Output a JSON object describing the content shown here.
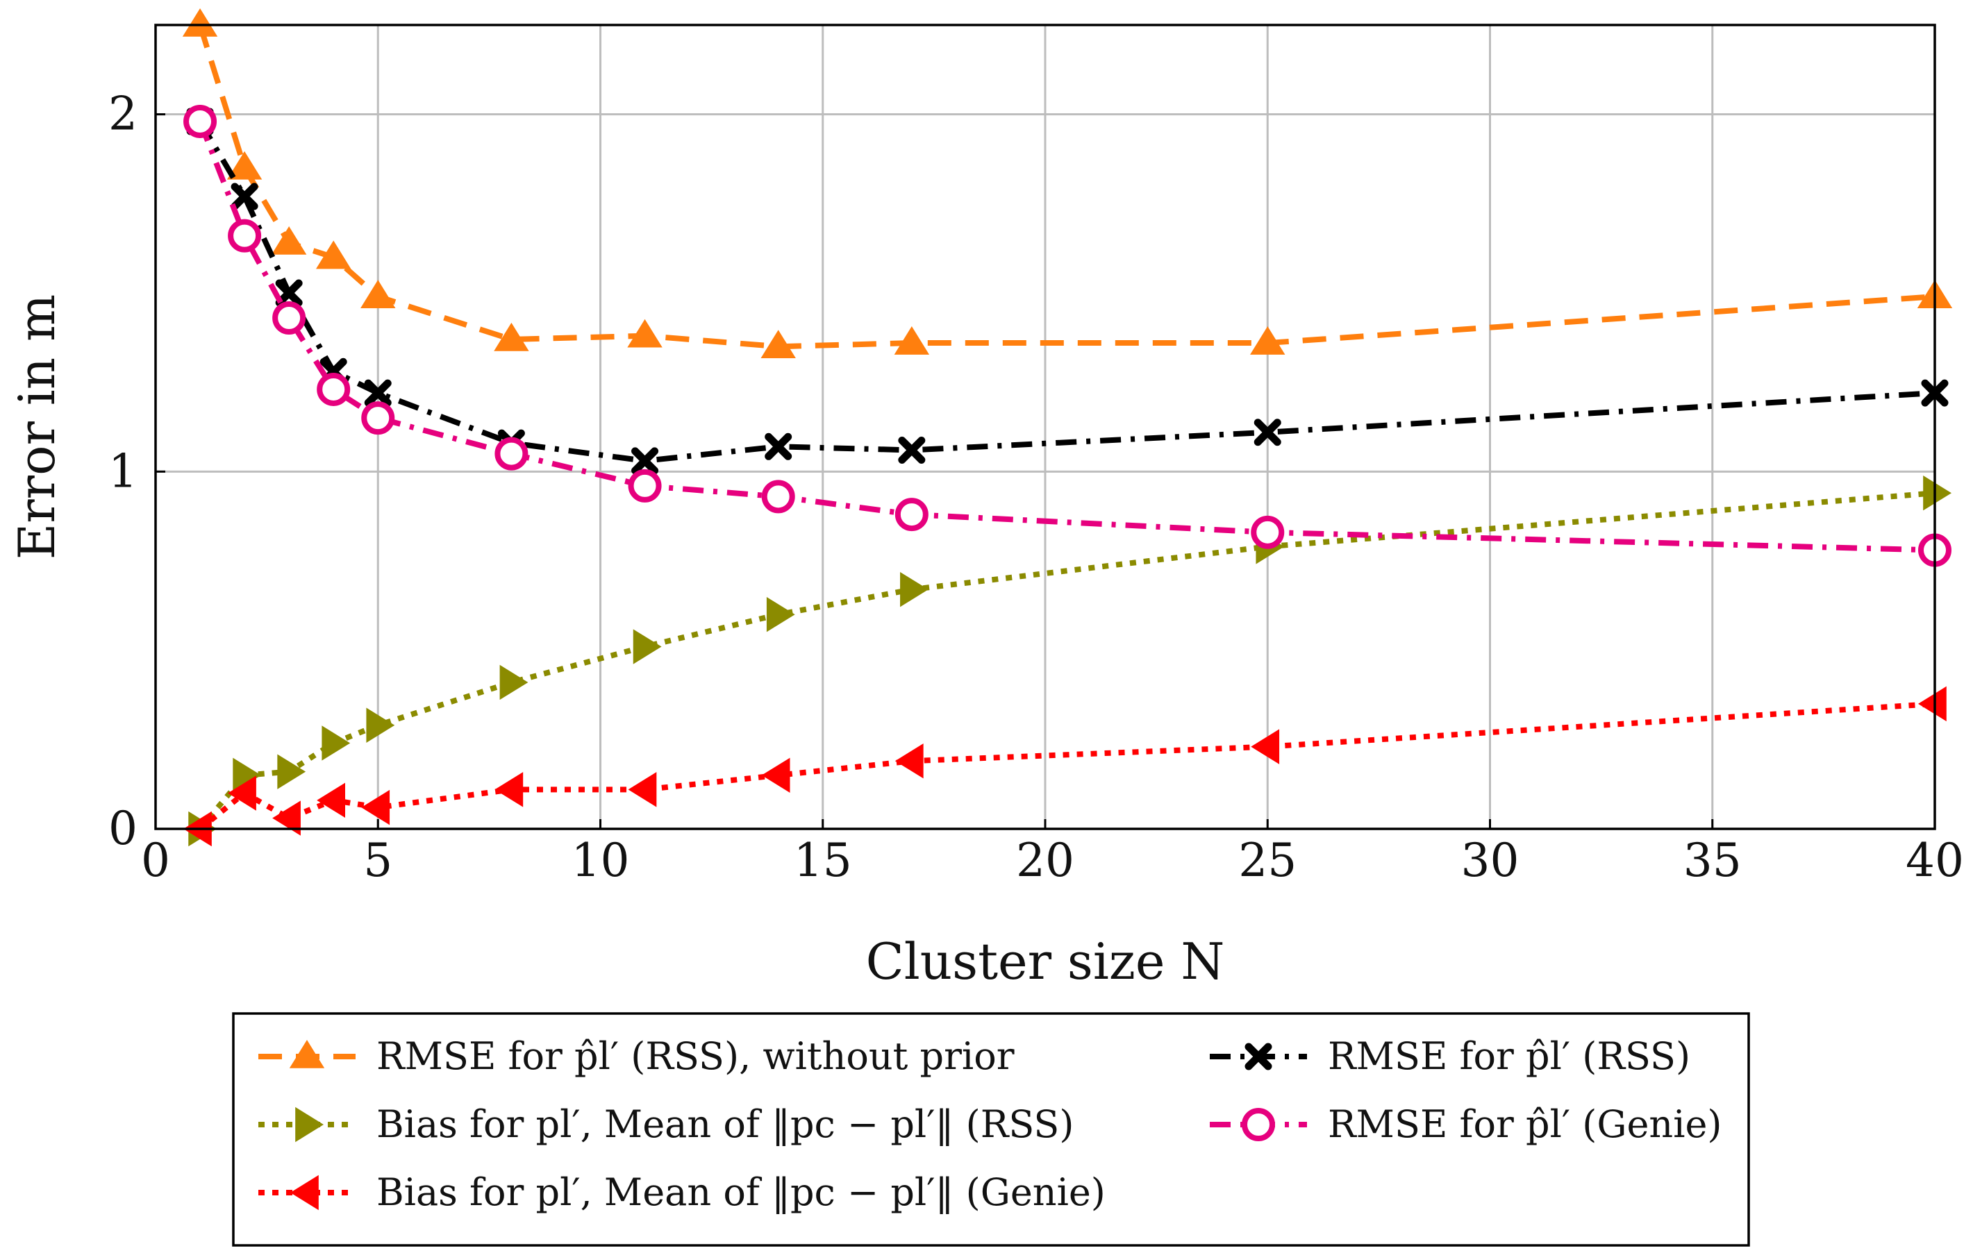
{
  "chart_data": {
    "type": "line",
    "title": "",
    "xlabel": "Cluster size N",
    "ylabel": "Error in m",
    "xlim": [
      0,
      40
    ],
    "ylim": [
      0,
      2.25
    ],
    "xticks": [
      0,
      5,
      10,
      15,
      20,
      25,
      30,
      35,
      40
    ],
    "yticks": [
      0,
      1,
      2
    ],
    "xtick_labels": [
      "0",
      "5",
      "10",
      "15",
      "20",
      "25",
      "30",
      "35",
      "40"
    ],
    "ytick_labels": [
      "0",
      "1",
      "2"
    ],
    "grid": true,
    "legend_position": "bottom-outside",
    "series": [
      {
        "name": "RMSE for p̂_l′ (RSS), without prior",
        "legend_text": "RMSE for p̂l′ (RSS), without prior",
        "color": "#ff7f0e",
        "dash": "dashed",
        "marker": "triangle-up",
        "x": [
          1,
          2,
          3,
          4,
          5,
          8,
          11,
          14,
          17,
          25,
          40
        ],
        "values": [
          2.25,
          1.85,
          1.64,
          1.6,
          1.49,
          1.37,
          1.38,
          1.35,
          1.36,
          1.36,
          1.49
        ]
      },
      {
        "name": "RMSE for p̂_l′ (RSS)",
        "legend_text": "RMSE for p̂l′ (RSS)",
        "color": "#000000",
        "dash": "dashdot",
        "marker": "x",
        "x": [
          1,
          2,
          3,
          4,
          5,
          8,
          11,
          14,
          17,
          25,
          40
        ],
        "values": [
          1.98,
          1.77,
          1.5,
          1.28,
          1.22,
          1.08,
          1.03,
          1.07,
          1.06,
          1.11,
          1.22
        ]
      },
      {
        "name": "Bias for p_l′, Mean of ‖p_c − p_l′‖ (RSS)",
        "legend_text": "Bias for pl′, Mean of ‖pc − pl′‖ (RSS)",
        "color": "#8b8b00",
        "dash": "dotted",
        "marker": "triangle-right",
        "x": [
          1,
          2,
          3,
          4,
          5,
          8,
          11,
          14,
          17,
          25,
          40
        ],
        "values": [
          0.0,
          0.15,
          0.16,
          0.24,
          0.29,
          0.41,
          0.51,
          0.6,
          0.67,
          0.79,
          0.94
        ]
      },
      {
        "name": "RMSE for p̂_l′ (Genie)",
        "legend_text": "RMSE for p̂l′ (Genie)",
        "color": "#e6007e",
        "dash": "dashdot",
        "marker": "circle",
        "x": [
          1,
          2,
          3,
          4,
          5,
          8,
          11,
          14,
          17,
          25,
          40
        ],
        "values": [
          1.98,
          1.66,
          1.43,
          1.23,
          1.15,
          1.05,
          0.96,
          0.93,
          0.88,
          0.83,
          0.78
        ]
      },
      {
        "name": "Bias for p_l′, Mean of ‖p_c − p_l′‖ (Genie)",
        "legend_text": "Bias for pl′, Mean of ‖pc − pl′‖ (Genie)",
        "color": "#ff0000",
        "dash": "dotted",
        "marker": "triangle-left",
        "x": [
          1,
          2,
          3,
          4,
          5,
          8,
          11,
          14,
          17,
          25,
          40
        ],
        "values": [
          0.0,
          0.1,
          0.03,
          0.08,
          0.06,
          0.11,
          0.11,
          0.15,
          0.19,
          0.23,
          0.35
        ]
      }
    ]
  }
}
